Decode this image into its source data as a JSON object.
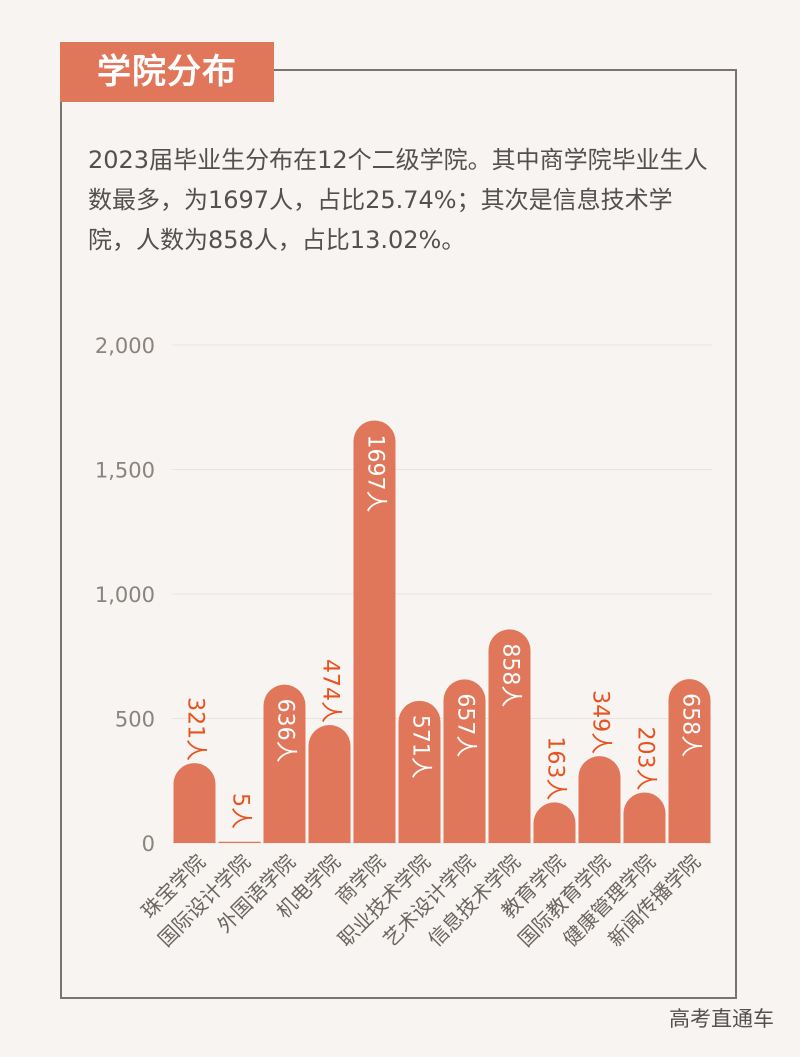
{
  "header": {
    "title": "学院分布"
  },
  "intro": {
    "text": "2023届毕业生分布在12个二级学院。其中商学院毕业生人数最多，为1697人，占比25.74%；其次是信息技术学院，人数为858人，占比13.02%。"
  },
  "footer": {
    "credit": "高考直通车"
  },
  "colors": {
    "bar": "#e0775b",
    "label_inside": "#ffffff",
    "label_outside": "#e8521f",
    "axis_text": "#8a8480",
    "category_text": "#6b6560",
    "grid": "#e8e4e0"
  },
  "chart_data": {
    "type": "bar",
    "title": "",
    "xlabel": "",
    "ylabel": "",
    "ylim": [
      0,
      2000
    ],
    "yticks": [
      0,
      500,
      1000,
      1500,
      2000
    ],
    "ytick_labels": [
      "0",
      "500",
      "1,000",
      "1,500",
      "2,000"
    ],
    "grid": true,
    "categories": [
      "珠宝学院",
      "国际设计学院",
      "外国语学院",
      "机电学院",
      "商学院",
      "职业技术学院",
      "艺术设计学院",
      "信息技术学院",
      "教育学院",
      "国际教育学院",
      "健康管理学院",
      "新闻传播学院"
    ],
    "values": [
      321,
      5,
      636,
      474,
      1697,
      571,
      657,
      858,
      163,
      349,
      203,
      658
    ],
    "data_labels": [
      "321人",
      "5人",
      "636人",
      "474人",
      "1697人",
      "571人",
      "657人",
      "858人",
      "163人",
      "349人",
      "203人",
      "658人"
    ]
  }
}
